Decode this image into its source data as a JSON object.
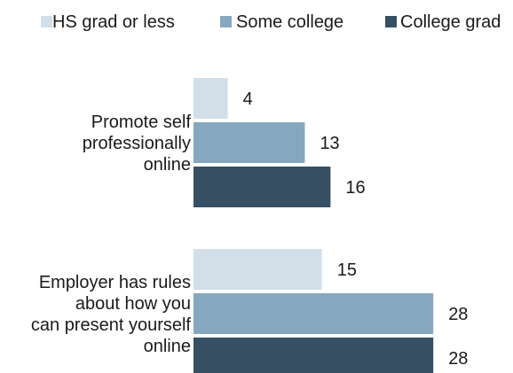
{
  "chart_data": {
    "type": "bar",
    "orientation": "horizontal",
    "categories": [
      [
        "Promote self",
        "professionally",
        "online"
      ],
      [
        "Employer has rules",
        "about how you",
        "can present yourself",
        "online"
      ]
    ],
    "series": [
      {
        "name": "HS grad or less",
        "values": [
          4,
          15
        ],
        "color": "#d3dfe8"
      },
      {
        "name": "Some college",
        "values": [
          13,
          28
        ],
        "color": "#85a8bf"
      },
      {
        "name": "College grad",
        "values": [
          16,
          28
        ],
        "color": "#364f62"
      }
    ],
    "legend": "top",
    "grid": false,
    "xlim": [
      0,
      30
    ]
  }
}
